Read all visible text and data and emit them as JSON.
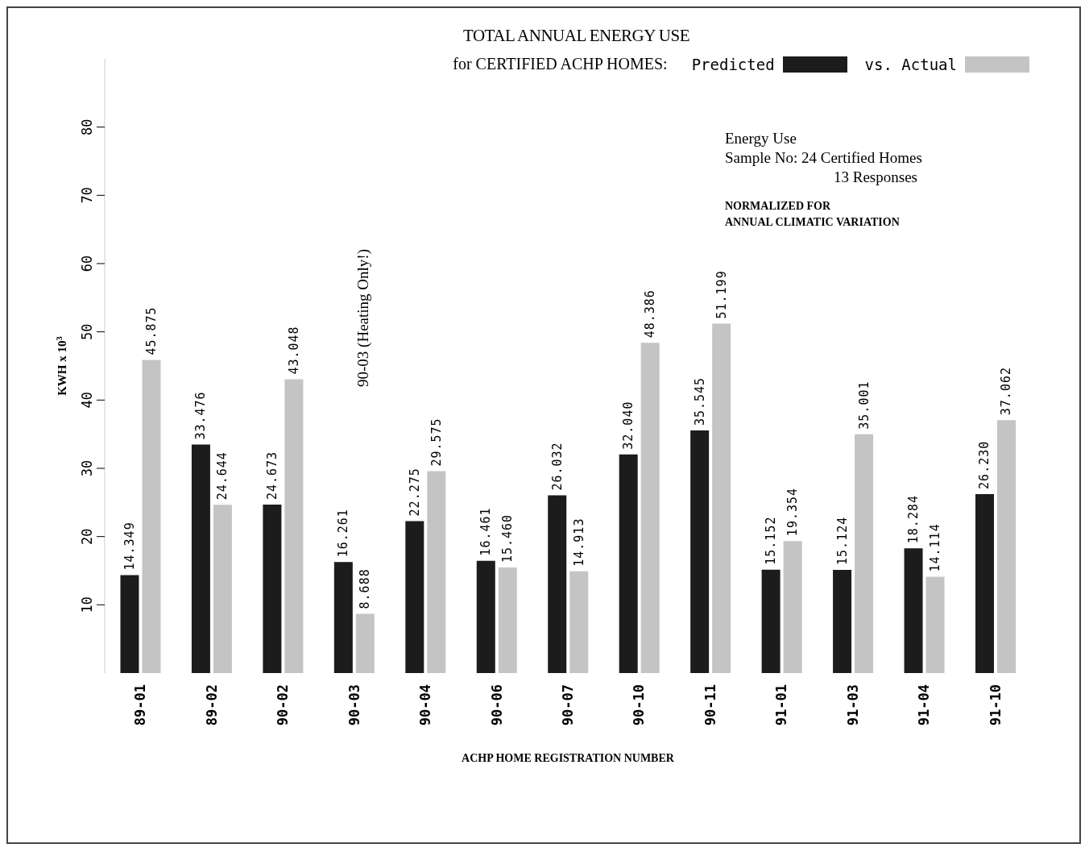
{
  "chart_data": {
    "type": "bar",
    "title": "TOTAL ANNUAL ENERGY USE",
    "subtitle": "for CERTIFIED ACHP HOMES:",
    "xlabel": "ACHP HOME REGISTRATION NUMBER",
    "ylabel": "KWH x 10$^{3}$",
    "categories": [
      "89-01",
      "89-02",
      "90-02",
      "90-03",
      "90-04",
      "90-06",
      "90-07",
      "90-10",
      "90-11",
      "91-01",
      "91-03",
      "91-04",
      "91-10"
    ],
    "series": [
      {
        "name": "Predicted",
        "color": "#1c1c1c",
        "values": [
          14.349,
          33.476,
          24.673,
          16.261,
          22.275,
          16.461,
          26.032,
          32.04,
          35.545,
          15.152,
          15.124,
          18.284,
          26.23
        ],
        "value_labels": [
          "14.349",
          "33.476",
          "24.673",
          "16.261",
          "22.275",
          "16.461",
          "26.032",
          "32.040",
          "35.545",
          "15.152",
          "15.124",
          "18.284",
          "26.230"
        ]
      },
      {
        "name": "vs. Actual",
        "color": "#c4c4c4",
        "values": [
          45.875,
          24.644,
          43.048,
          8.688,
          29.575,
          15.46,
          14.913,
          48.386,
          51.199,
          19.354,
          35.001,
          14.114,
          37.062
        ],
        "value_labels": [
          "45.875",
          "24.644",
          "43.048",
          "8.688",
          "29.575",
          "15.460",
          "14.913",
          "48.386",
          "51.199",
          "19.354",
          "35.001",
          "14.114",
          "37.062"
        ]
      }
    ],
    "ylim": [
      0,
      90
    ],
    "yticks": [
      10,
      20,
      30,
      40,
      50,
      60,
      70,
      80
    ],
    "grid": false,
    "legend": "top right",
    "annotations": [
      "Energy Use",
      "Sample No:   24 Certified Homes",
      "13 Responses",
      "NORMALIZED FOR",
      "ANNUAL CLIMATIC VARIATION",
      "90-03 (Heating Only!)"
    ]
  }
}
